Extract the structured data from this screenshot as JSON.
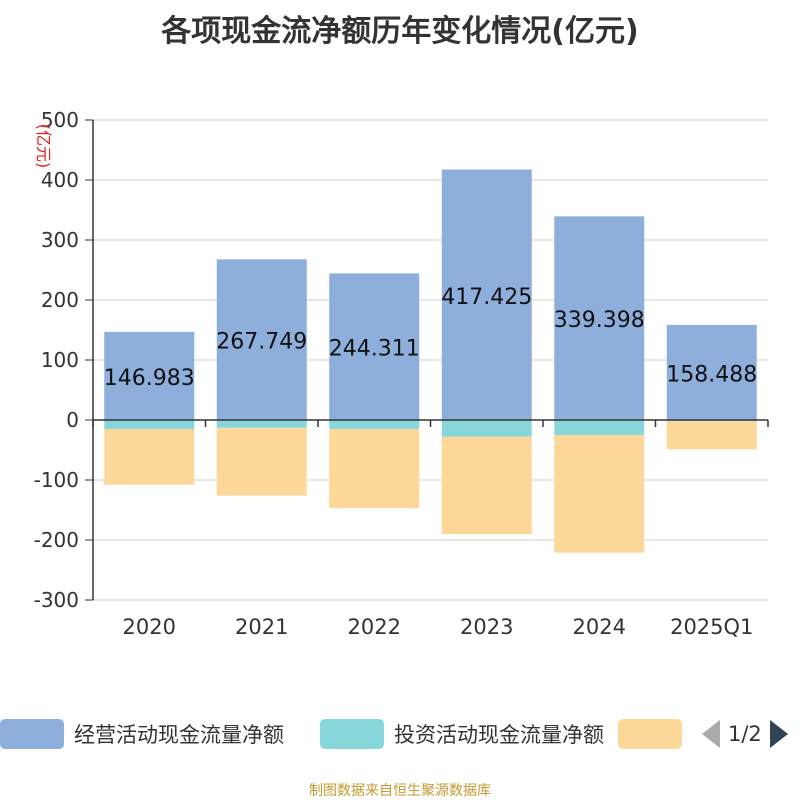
{
  "title": "各项现金流净额历年变化情况(亿元)",
  "source": "制图数据来自恒生聚源数据库",
  "legend": {
    "items": [
      {
        "label": "经营活动现金流量净额",
        "color": "#8eafdc"
      },
      {
        "label": "投资活动现金流量净额",
        "color": "#87d6d9"
      },
      {
        "label": "",
        "color": "#fdd899"
      }
    ],
    "page": "1/2"
  },
  "chart_data": {
    "type": "bar",
    "stacked": true,
    "categories": [
      "2020",
      "2021",
      "2022",
      "2023",
      "2024",
      "2025Q1"
    ],
    "series": [
      {
        "name": "经营活动现金流量净额",
        "values": [
          146.983,
          267.749,
          244.311,
          417.425,
          339.398,
          158.488
        ],
        "color": "#8eafdc",
        "show_labels": true
      },
      {
        "name": "投资活动现金流量净额",
        "values": [
          -15,
          -13,
          -15,
          -28,
          -25,
          -2
        ],
        "color": "#87d6d9",
        "show_labels": false
      },
      {
        "name": "",
        "values": [
          -93,
          -113,
          -132,
          -162,
          -196,
          -47
        ],
        "color": "#fdd899",
        "show_labels": false
      }
    ],
    "ylabel": "(亿元)",
    "ylim": [
      -300,
      500
    ],
    "yticks": [
      500,
      400,
      300,
      200,
      100,
      0,
      -100,
      -200,
      -300
    ]
  }
}
